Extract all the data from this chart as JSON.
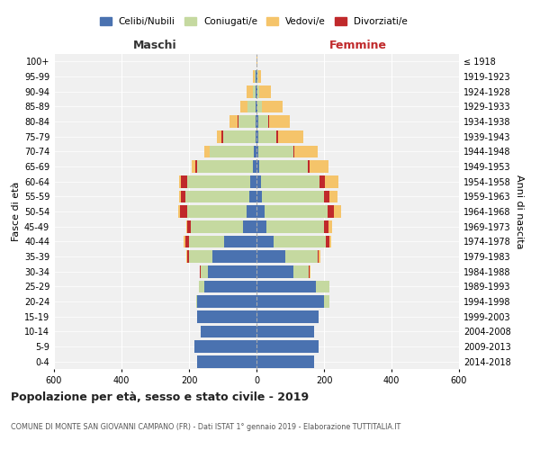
{
  "age_groups": [
    "0-4",
    "5-9",
    "10-14",
    "15-19",
    "20-24",
    "25-29",
    "30-34",
    "35-39",
    "40-44",
    "45-49",
    "50-54",
    "55-59",
    "60-64",
    "65-69",
    "70-74",
    "75-79",
    "80-84",
    "85-89",
    "90-94",
    "95-99",
    "100+"
  ],
  "birth_years": [
    "2014-2018",
    "2009-2013",
    "2004-2008",
    "1999-2003",
    "1994-1998",
    "1989-1993",
    "1984-1988",
    "1979-1983",
    "1974-1978",
    "1969-1973",
    "1964-1968",
    "1959-1963",
    "1954-1958",
    "1949-1953",
    "1944-1948",
    "1939-1943",
    "1934-1938",
    "1929-1933",
    "1924-1928",
    "1919-1923",
    "≤ 1918"
  ],
  "colors": {
    "celibi": "#4a72b0",
    "coniugati": "#c5d9a0",
    "vedovi": "#f5c46a",
    "divorziati": "#c0292b"
  },
  "males": {
    "celibi": [
      175,
      185,
      165,
      175,
      175,
      155,
      145,
      130,
      95,
      40,
      30,
      22,
      20,
      12,
      8,
      4,
      3,
      2,
      2,
      2,
      0
    ],
    "coniugati": [
      0,
      0,
      0,
      0,
      4,
      15,
      20,
      70,
      105,
      155,
      175,
      190,
      185,
      165,
      130,
      95,
      50,
      25,
      8,
      4,
      0
    ],
    "vedovi": [
      0,
      0,
      0,
      0,
      0,
      0,
      0,
      2,
      5,
      2,
      5,
      5,
      5,
      10,
      15,
      15,
      25,
      20,
      20,
      4,
      0
    ],
    "divorziati": [
      0,
      0,
      0,
      0,
      0,
      0,
      3,
      5,
      10,
      10,
      22,
      12,
      20,
      5,
      2,
      4,
      2,
      0,
      0,
      0,
      0
    ]
  },
  "females": {
    "celibi": [
      170,
      185,
      170,
      185,
      200,
      175,
      110,
      85,
      50,
      30,
      25,
      15,
      12,
      8,
      5,
      4,
      4,
      3,
      2,
      2,
      0
    ],
    "coniugati": [
      0,
      0,
      0,
      0,
      15,
      40,
      45,
      95,
      155,
      170,
      185,
      185,
      175,
      145,
      105,
      55,
      30,
      12,
      5,
      3,
      0
    ],
    "vedovi": [
      0,
      0,
      0,
      0,
      0,
      2,
      2,
      5,
      5,
      12,
      20,
      25,
      40,
      55,
      70,
      75,
      60,
      60,
      35,
      8,
      2
    ],
    "divorziati": [
      0,
      0,
      0,
      0,
      0,
      0,
      3,
      5,
      10,
      12,
      20,
      15,
      15,
      5,
      2,
      5,
      4,
      2,
      0,
      0,
      0
    ]
  },
  "xlim": 600,
  "title": "Popolazione per età, sesso e stato civile - 2019",
  "subtitle": "COMUNE DI MONTE SAN GIOVANNI CAMPANO (FR) - Dati ISTAT 1° gennaio 2019 - Elaborazione TUTTITALIA.IT",
  "xlabel_left": "Maschi",
  "xlabel_right": "Femmine",
  "ylabel_left": "Fasce di età",
  "ylabel_right": "Anni di nascita",
  "legend_labels": [
    "Celibi/Nubili",
    "Coniugati/e",
    "Vedovi/e",
    "Divorziati/e"
  ],
  "bg_color": "#ffffff",
  "grid_color": "#cccccc",
  "plot_bg": "#f0f0f0"
}
